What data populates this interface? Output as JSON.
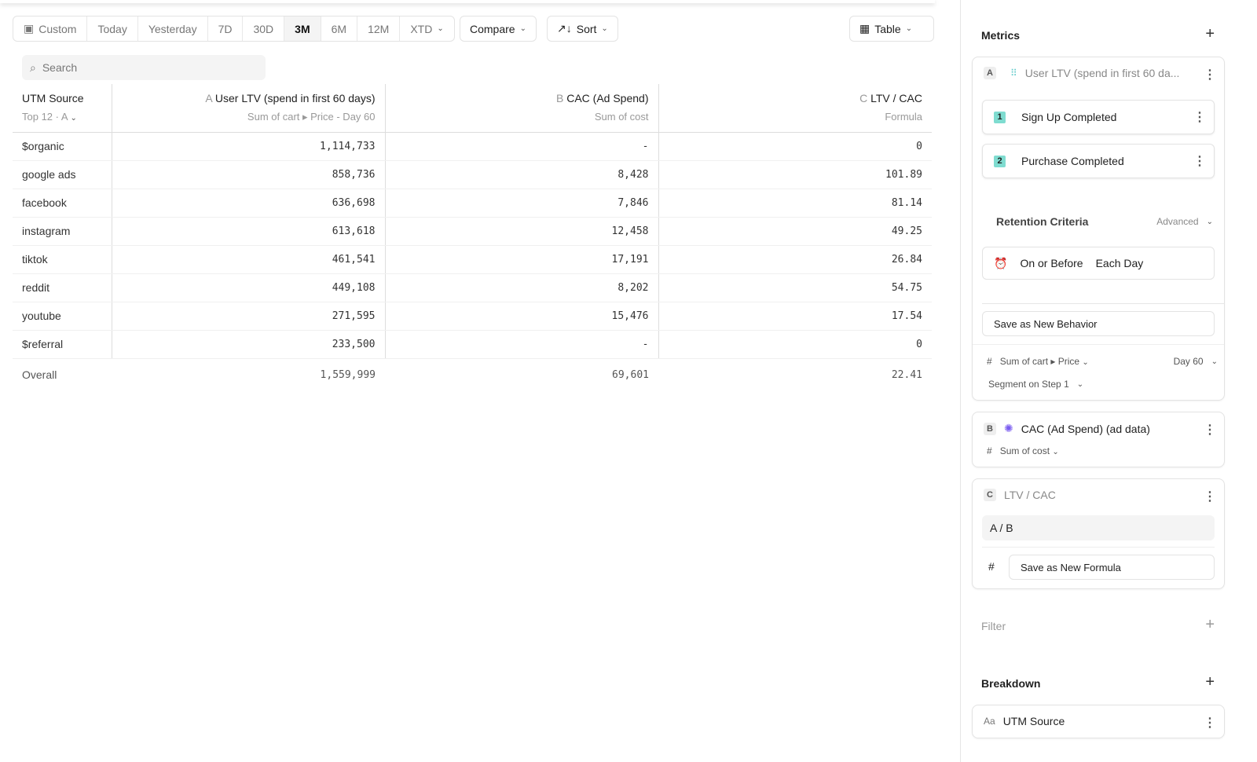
{
  "toolbar": {
    "date_ranges": [
      "Custom",
      "Today",
      "Yesterday",
      "7D",
      "30D",
      "3M",
      "6M",
      "12M",
      "XTD"
    ],
    "selected": "3M",
    "compare": "Compare",
    "sort": "Sort",
    "view": "Table"
  },
  "search": {
    "placeholder": "Search"
  },
  "table": {
    "first_col": {
      "title": "UTM Source",
      "sub": "Top 12 · A"
    },
    "columns": [
      {
        "letter": "A",
        "title": "User LTV (spend in first 60 days)",
        "sub": "Sum of cart ▸ Price - Day 60"
      },
      {
        "letter": "B",
        "title": "CAC (Ad Spend)",
        "sub": "Sum of cost"
      },
      {
        "letter": "C",
        "title": "LTV / CAC",
        "sub": "Formula"
      }
    ],
    "rows": [
      [
        "$organic",
        "1,114,733",
        "-",
        "0"
      ],
      [
        "google ads",
        "858,736",
        "8,428",
        "101.89"
      ],
      [
        "facebook",
        "636,698",
        "7,846",
        "81.14"
      ],
      [
        "instagram",
        "613,618",
        "12,458",
        "49.25"
      ],
      [
        "tiktok",
        "461,541",
        "17,191",
        "26.84"
      ],
      [
        "reddit",
        "449,108",
        "8,202",
        "54.75"
      ],
      [
        "youtube",
        "271,595",
        "15,476",
        "17.54"
      ],
      [
        "$referral",
        "233,500",
        "-",
        "0"
      ]
    ],
    "overall": [
      "Overall",
      "1,559,999",
      "69,601",
      "22.41"
    ]
  },
  "panel": {
    "metrics": "Metrics",
    "a": {
      "letter": "A",
      "title": "User LTV (spend in first 60 da...",
      "steps": [
        {
          "n": "1",
          "label": "Sign Up Completed"
        },
        {
          "n": "2",
          "label": "Purchase Completed"
        }
      ],
      "retention": "Retention Criteria",
      "advanced": "Advanced",
      "on_or_before": "On or Before",
      "each_day": "Each Day",
      "save": "Save as New Behavior",
      "hash": "#",
      "measure": "Sum of cart ▸ Price",
      "day": "Day 60",
      "segment": "Segment on Step 1"
    },
    "b": {
      "letter": "B",
      "title": "CAC (Ad Spend) (ad data)",
      "hash": "#",
      "measure": "Sum of cost"
    },
    "c": {
      "letter": "C",
      "title": "LTV / CAC",
      "formula": "A / B",
      "hash": "#",
      "save": "Save as New Formula"
    },
    "filter": "Filter",
    "breakdown": "Breakdown",
    "breakdown_item": {
      "icon": "Aa",
      "label": "UTM Source"
    }
  }
}
